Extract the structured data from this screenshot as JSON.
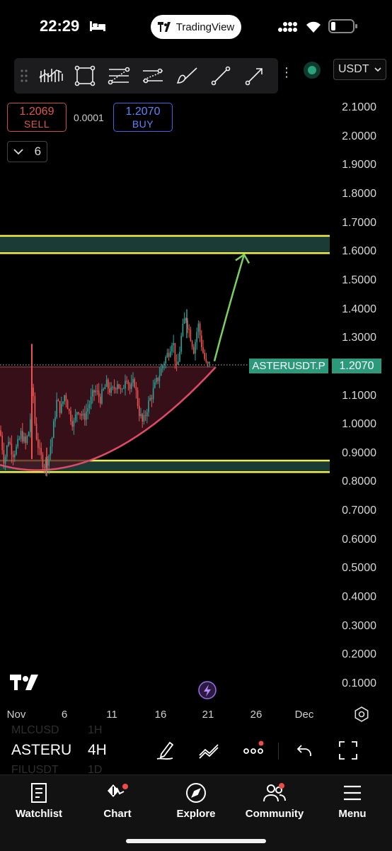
{
  "status_bar": {
    "time": "22:29",
    "app_name": "TradingView"
  },
  "toolbar": {
    "tools": [
      "grip-icon",
      "candles-tool-icon",
      "rectangle-tool-icon",
      "fib-retracement-icon",
      "parallel-channel-icon",
      "brush-tool-icon",
      "trend-line-icon",
      "arrow-tool-icon"
    ],
    "more": "⋮",
    "currency": "USDT"
  },
  "trade": {
    "sell_price": "1.2069",
    "sell_label": "SELL",
    "spread": "0.0001",
    "buy_price": "1.2070",
    "buy_label": "BUY"
  },
  "indicators": {
    "count": "6"
  },
  "chart_data": {
    "type": "candlestick",
    "y_axis": {
      "ticks": [
        "2.1000",
        "2.0000",
        "1.9000",
        "1.8000",
        "1.7000",
        "1.6000",
        "1.5000",
        "1.4000",
        "1.3000",
        "1.2000",
        "1.1000",
        "1.0000",
        "0.9000",
        "0.8000",
        "0.7000",
        "0.6000",
        "0.5000",
        "0.4000",
        "0.3000",
        "0.2000",
        "0.1000"
      ],
      "range": [
        0.05,
        2.15
      ]
    },
    "x_axis": {
      "ticks": [
        "Nov",
        "6",
        "11",
        "16",
        "21",
        "26",
        "Dec"
      ]
    },
    "symbol": "ASTERUSDT.P",
    "last_price": "1.2070",
    "zones": [
      {
        "name": "resistance",
        "top": 1.655,
        "bottom": 1.595
      },
      {
        "name": "support",
        "top": 0.875,
        "bottom": 0.835
      }
    ],
    "colors": {
      "up": "#26a69a",
      "down": "#ef5350",
      "zone_line": "#f0ee4a",
      "zone_fill": "#1a3b36",
      "curve": "#e04a68",
      "arrow": "#7bd15d",
      "label_bg": "#2b9a7b"
    }
  },
  "symbol_bar": {
    "symbol": "ASTERU",
    "timeframe": "4H",
    "ghost_top": "MLCUSD",
    "ghost_top_tf": "1H",
    "ghost_bottom": "FILUSDT",
    "ghost_bottom_tf": "1D"
  },
  "nav": {
    "watchlist": "Watchlist",
    "chart": "Chart",
    "explore": "Explore",
    "community": "Community",
    "menu": "Menu"
  }
}
